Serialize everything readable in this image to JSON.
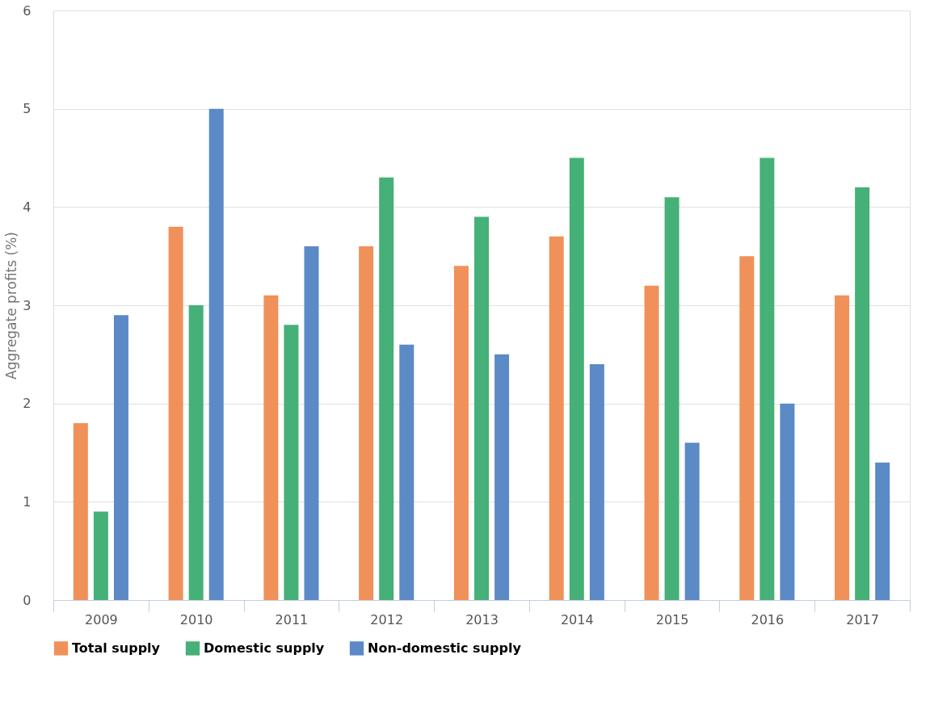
{
  "chart_data": {
    "type": "bar",
    "ylabel": "Aggregate profits (%)",
    "categories": [
      "2009",
      "2010",
      "2011",
      "2012",
      "2013",
      "2014",
      "2015",
      "2016",
      "2017"
    ],
    "series": [
      {
        "name": "Total supply",
        "color": "#f0915a",
        "values": [
          1.8,
          3.8,
          3.1,
          3.6,
          3.4,
          3.7,
          3.2,
          3.5,
          3.1
        ]
      },
      {
        "name": "Domestic supply",
        "color": "#45b077",
        "values": [
          0.9,
          3.0,
          2.8,
          4.3,
          3.9,
          4.5,
          4.1,
          4.5,
          4.2
        ]
      },
      {
        "name": "Non-domestic supply",
        "color": "#5b8ac6",
        "values": [
          2.9,
          5.0,
          3.6,
          2.6,
          2.5,
          2.4,
          1.6,
          2.0,
          1.4
        ]
      }
    ],
    "ylim": [
      0,
      6
    ],
    "yticks": [
      0,
      1,
      2,
      3,
      4,
      5,
      6
    ],
    "grid": "y",
    "legend": "bottom"
  }
}
